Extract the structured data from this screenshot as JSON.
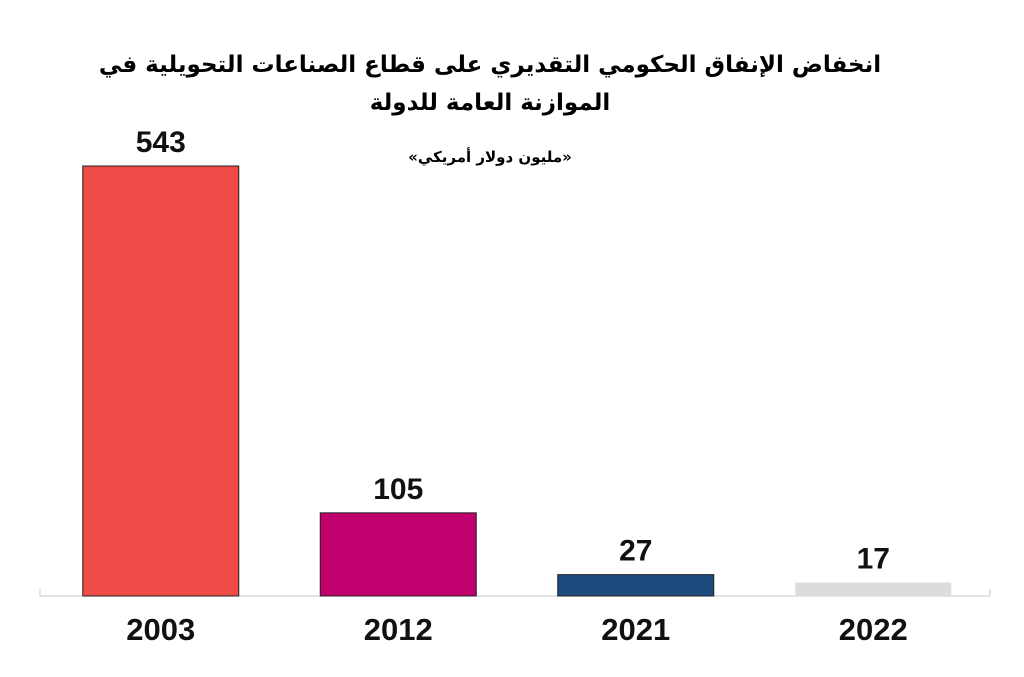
{
  "title_line1": "انخفاض الإنفاق الحكومي التقديري على قطاع الصناعات التحويلية في",
  "title_line2": "الموازنة العامة للدولة",
  "subtitle": "«مليون دولار أمريكي»",
  "chart_data": {
    "type": "bar",
    "title": "انخفاض الإنفاق الحكومي التقديري على قطاع الصناعات التحويلية في الموازنة العامة للدولة",
    "subtitle": "«مليون دولار أمريكي»",
    "categories": [
      "2003",
      "2012",
      "2021",
      "2022"
    ],
    "values": [
      543,
      105,
      27,
      17
    ],
    "colors": [
      "#ee4b46",
      "#c0006d",
      "#1f4a7e",
      "#dcdcdc"
    ],
    "ylim": [
      0,
      543
    ],
    "grid": false,
    "legend": "none"
  }
}
